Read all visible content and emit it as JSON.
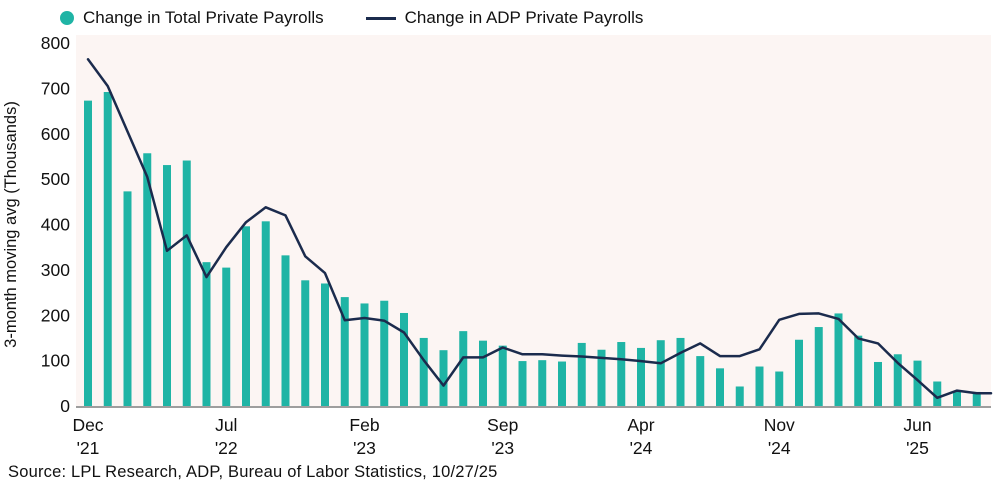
{
  "legend": {
    "bars_label": "Change in Total Private Payrolls",
    "line_label": "Change in ADP Private Payrolls"
  },
  "source_text": "Source: LPL Research, ADP, Bureau of Labor Statistics, 10/27/25",
  "colors": {
    "bar": "#1FB4A5",
    "line": "#1B2B4D",
    "plot_bg": "#FCF5F3",
    "axis": "#9E9E9E",
    "text": "#111111"
  },
  "chart_data": {
    "type": "bar+line",
    "title": "",
    "xlabel": "",
    "ylabel": "3-month moving avg (Thousands)",
    "ylim": [
      0,
      800
    ],
    "ytick_step": 100,
    "yticks": [
      0,
      100,
      200,
      300,
      400,
      500,
      600,
      700,
      800
    ],
    "grid": false,
    "legend_position": "top",
    "months": [
      "Dec '21",
      "Jan '22",
      "Feb '22",
      "Mar '22",
      "Apr '22",
      "May '22",
      "Jun '22",
      "Jul '22",
      "Aug '22",
      "Sep '22",
      "Oct '22",
      "Nov '22",
      "Dec '22",
      "Jan '23",
      "Feb '23",
      "Mar '23",
      "Apr '23",
      "May '23",
      "Jun '23",
      "Jul '23",
      "Aug '23",
      "Sep '23",
      "Oct '23",
      "Nov '23",
      "Dec '23",
      "Jan '24",
      "Feb '24",
      "Mar '24",
      "Apr '24",
      "May '24",
      "Jun '24",
      "Jul '24",
      "Aug '24",
      "Sep '24",
      "Oct '24",
      "Nov '24",
      "Dec '24",
      "Jan '25",
      "Feb '25",
      "Mar '25",
      "Apr '25",
      "May '25",
      "Jun '25",
      "Jul '25",
      "Aug '25",
      "Sep '25"
    ],
    "xticks": [
      {
        "index": 0,
        "line1": "Dec",
        "line2": "'21"
      },
      {
        "index": 7,
        "line1": "Jul",
        "line2": "'22"
      },
      {
        "index": 14,
        "line1": "Feb",
        "line2": "'23"
      },
      {
        "index": 21,
        "line1": "Sep",
        "line2": "'23"
      },
      {
        "index": 28,
        "line1": "Apr",
        "line2": "'24"
      },
      {
        "index": 35,
        "line1": "Nov",
        "line2": "'24"
      },
      {
        "index": 42,
        "line1": "Jun",
        "line2": "'25"
      }
    ],
    "series": [
      {
        "name": "Change in Total Private Payrolls",
        "type": "bar",
        "values": [
          673,
          692,
          473,
          557,
          531,
          541,
          317,
          305,
          396,
          407,
          332,
          277,
          270,
          240,
          226,
          232,
          205,
          150,
          123,
          165,
          144,
          133,
          99,
          101,
          98,
          139,
          124,
          141,
          128,
          145,
          150,
          110,
          83,
          43,
          87,
          76,
          146,
          174,
          204,
          155,
          97,
          114,
          100,
          54,
          31,
          31
        ]
      },
      {
        "name": "Change in ADP Private Payrolls",
        "type": "line",
        "values": [
          764,
          705,
          605,
          505,
          342,
          376,
          284,
          350,
          405,
          438,
          420,
          330,
          293,
          189,
          194,
          188,
          162,
          101,
          45,
          107,
          107,
          129,
          114,
          114,
          111,
          109,
          106,
          103,
          99,
          94,
          117,
          138,
          110,
          110,
          125,
          190,
          203,
          204,
          192,
          149,
          138,
          95,
          57,
          18,
          34,
          28
        ],
        "extends_to_right_edge": true
      }
    ]
  }
}
